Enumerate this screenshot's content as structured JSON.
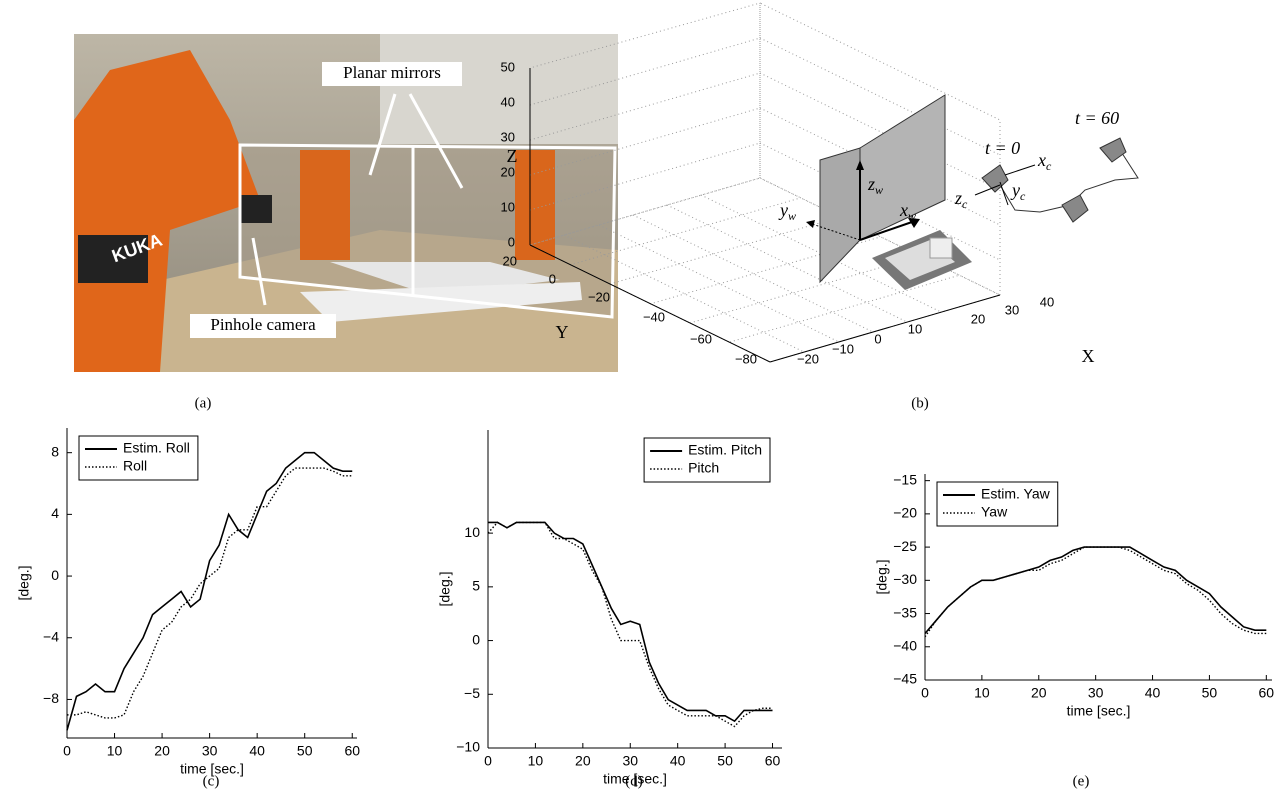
{
  "panel_a": {
    "caption": "(a)",
    "mirror_label": "Planar mirrors",
    "camera_label": "Pinhole camera",
    "robot_text": "KUKA"
  },
  "panel_b": {
    "caption": "(b)",
    "z_label": "Z",
    "y_label": "Y",
    "x_label": "X",
    "z_ticks": [
      "0",
      "10",
      "20",
      "30",
      "40",
      "50"
    ],
    "y_ticks": [
      "20",
      "0",
      "−20",
      "−40",
      "−60",
      "−80"
    ],
    "x_ticks": [
      "−20",
      "−10",
      "0",
      "10",
      "20",
      "30",
      "40"
    ],
    "t_start": "t = 0",
    "t_end": "t = 60",
    "xc": {
      "base": "x",
      "sub": "c"
    },
    "yc": {
      "base": "y",
      "sub": "c"
    },
    "zc": {
      "base": "z",
      "sub": "c"
    },
    "xw": {
      "base": "x",
      "sub": "w"
    },
    "yw": {
      "base": "y",
      "sub": "w"
    },
    "zw": {
      "base": "z",
      "sub": "w"
    }
  },
  "chart_data": [
    {
      "type": "line",
      "caption": "(c)",
      "xlabel": "time [sec.]",
      "ylabel": "[deg.]",
      "x": [
        0,
        2,
        4,
        6,
        8,
        10,
        12,
        14,
        16,
        18,
        20,
        22,
        24,
        26,
        28,
        30,
        32,
        34,
        36,
        38,
        40,
        42,
        44,
        46,
        48,
        50,
        52,
        54,
        56,
        58,
        60
      ],
      "xlim": [
        0,
        61
      ],
      "xticks": [
        0,
        10,
        20,
        30,
        40,
        50,
        60
      ],
      "ylim": [
        -10.5,
        9.6
      ],
      "yticks": [
        {
          "value": -8,
          "label": "−8"
        },
        {
          "value": -4,
          "label": "−4"
        },
        0,
        4,
        8
      ],
      "legend": "upper left",
      "series": [
        {
          "name": "Estim. Roll",
          "color": "#000000",
          "dash": "solid",
          "values": [
            -10,
            -7.8,
            -7.5,
            -7,
            -7.5,
            -7.5,
            -6,
            -5,
            -4,
            -2.5,
            -2,
            -1.5,
            -1,
            -2,
            -1.5,
            1,
            2,
            4,
            3,
            2.5,
            4,
            5.5,
            6,
            7,
            7.5,
            8,
            8,
            7.5,
            7,
            6.8,
            6.8
          ]
        },
        {
          "name": "Roll",
          "color": "#000000",
          "dash": "dotted",
          "values": [
            -9,
            -9,
            -8.8,
            -9,
            -9.2,
            -9.2,
            -9,
            -7.5,
            -6.5,
            -5,
            -3.5,
            -3,
            -2,
            -1.5,
            -0.5,
            0,
            0.5,
            2.5,
            3,
            3,
            4.5,
            4.5,
            5.5,
            6.5,
            7,
            7,
            7,
            7,
            6.8,
            6.5,
            6.5
          ]
        }
      ]
    },
    {
      "type": "line",
      "caption": "(d)",
      "xlabel": "time [sec.]",
      "ylabel": "[deg.]",
      "x": [
        0,
        2,
        4,
        6,
        8,
        10,
        12,
        14,
        16,
        18,
        20,
        22,
        24,
        26,
        28,
        30,
        32,
        34,
        36,
        38,
        40,
        42,
        44,
        46,
        48,
        50,
        52,
        54,
        56,
        58,
        60
      ],
      "xlim": [
        0,
        62
      ],
      "xticks": [
        0,
        10,
        20,
        30,
        40,
        50,
        60
      ],
      "ylim": [
        -10,
        19.6
      ],
      "yticks": [
        {
          "value": -10,
          "label": "−10"
        },
        {
          "value": -5,
          "label": "−5"
        },
        0,
        5,
        10
      ],
      "legend": "upper right",
      "series": [
        {
          "name": "Estim. Pitch",
          "color": "#000000",
          "dash": "solid",
          "values": [
            11,
            11,
            10.5,
            11,
            11,
            11,
            11,
            10,
            9.5,
            9.5,
            9,
            7,
            5,
            3,
            1.5,
            1.8,
            1.5,
            -2,
            -4,
            -5.5,
            -6,
            -6.5,
            -6.5,
            -6.5,
            -7,
            -7,
            -7.5,
            -6.5,
            -6.5,
            -6.5,
            -6.5
          ]
        },
        {
          "name": "Pitch",
          "color": "#000000",
          "dash": "dotted",
          "values": [
            10,
            11,
            10.5,
            11,
            11,
            11,
            11,
            9.5,
            9.5,
            9,
            8.5,
            6.5,
            5,
            2,
            0,
            0,
            0,
            -2.5,
            -4.5,
            -6,
            -6.5,
            -7,
            -7,
            -7,
            -7,
            -7.5,
            -8,
            -7,
            -6.5,
            -6.3,
            -6.3
          ]
        }
      ]
    },
    {
      "type": "line",
      "caption": "(e)",
      "xlabel": "time [sec.]",
      "ylabel": "[deg.]",
      "x": [
        0,
        2,
        4,
        6,
        8,
        10,
        12,
        14,
        16,
        18,
        20,
        22,
        24,
        26,
        28,
        30,
        32,
        34,
        36,
        38,
        40,
        42,
        44,
        46,
        48,
        50,
        52,
        54,
        56,
        58,
        60
      ],
      "xlim": [
        0,
        61
      ],
      "xticks": [
        0,
        10,
        20,
        30,
        40,
        50,
        60
      ],
      "ylim": [
        -45,
        -14
      ],
      "yticks": [
        {
          "value": -45,
          "label": "−45"
        },
        {
          "value": -40,
          "label": "−40"
        },
        {
          "value": -35,
          "label": "−35"
        },
        {
          "value": -30,
          "label": "−30"
        },
        {
          "value": -25,
          "label": "−25"
        },
        {
          "value": -20,
          "label": "−20"
        },
        {
          "value": -15,
          "label": "−15"
        }
      ],
      "legend": "upper left",
      "series": [
        {
          "name": "Estim. Yaw",
          "color": "#000000",
          "dash": "solid",
          "values": [
            -38,
            -36,
            -34,
            -32.5,
            -31,
            -30,
            -30,
            -29.5,
            -29,
            -28.5,
            -28,
            -27,
            -26.5,
            -25.5,
            -25,
            -25,
            -25,
            -25,
            -25,
            -26,
            -27,
            -28,
            -28.5,
            -30,
            -31,
            -32,
            -34,
            -35.5,
            -37,
            -37.5,
            -37.5
          ]
        },
        {
          "name": "Yaw",
          "color": "#000000",
          "dash": "dotted",
          "values": [
            -38.5,
            -36,
            -34,
            -32.5,
            -31,
            -30,
            -30,
            -29.5,
            -29,
            -28.5,
            -28.5,
            -27.5,
            -27,
            -26,
            -25,
            -25,
            -25,
            -25,
            -25.5,
            -26.5,
            -27.5,
            -28.5,
            -29,
            -30.5,
            -31.5,
            -33,
            -35,
            -36.5,
            -37.5,
            -38,
            -38
          ]
        }
      ]
    }
  ]
}
